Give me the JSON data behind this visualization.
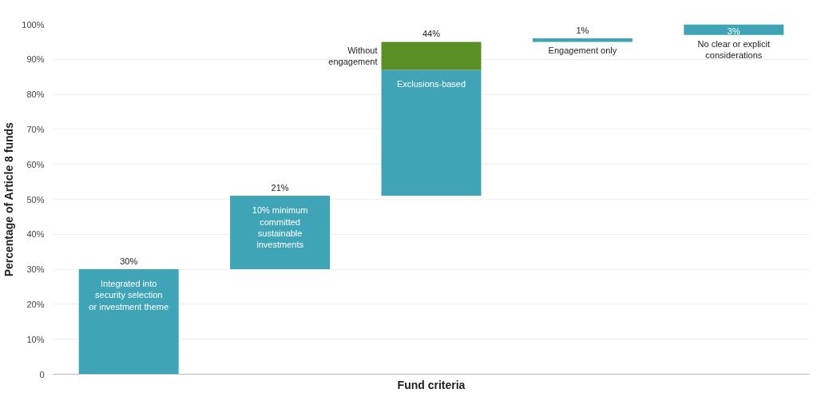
{
  "chart_data": {
    "type": "bar",
    "categories": [
      "Integrated into security selection or investment theme",
      "10% minimum committed sustainable investments",
      "Exclusions-based",
      "Engagement only",
      "No clear or explicit considerations"
    ],
    "series": [
      {
        "color": "#3fa4b6",
        "values": [
          30,
          21,
          36,
          1,
          3
        ],
        "base": [
          0,
          30,
          51,
          95,
          97
        ],
        "value_labels": [
          "30%",
          "21%",
          null,
          "1%",
          "3%"
        ]
      },
      {
        "color": "#5a8f25",
        "values": [
          null,
          null,
          8,
          null,
          null
        ],
        "base": [
          null,
          null,
          87,
          null,
          null
        ]
      }
    ],
    "annotations": [
      "Without engagement",
      "44%"
    ],
    "xlabel": "Fund criteria",
    "ylabel": "Percentage of Article 8 funds",
    "ylim": [
      0,
      100
    ],
    "yticks": [
      {
        "value": 0,
        "label": "0"
      },
      {
        "value": 10,
        "label": "10%"
      },
      {
        "value": 20,
        "label": "20%"
      },
      {
        "value": 30,
        "label": "30%"
      },
      {
        "value": 40,
        "label": "40%"
      },
      {
        "value": 50,
        "label": "50%"
      },
      {
        "value": 60,
        "label": "60%"
      },
      {
        "value": 70,
        "label": "70%"
      },
      {
        "value": 80,
        "label": "80%"
      },
      {
        "value": 90,
        "label": "90%"
      },
      {
        "value": 100,
        "label": "100%"
      }
    ],
    "grid": "y"
  }
}
